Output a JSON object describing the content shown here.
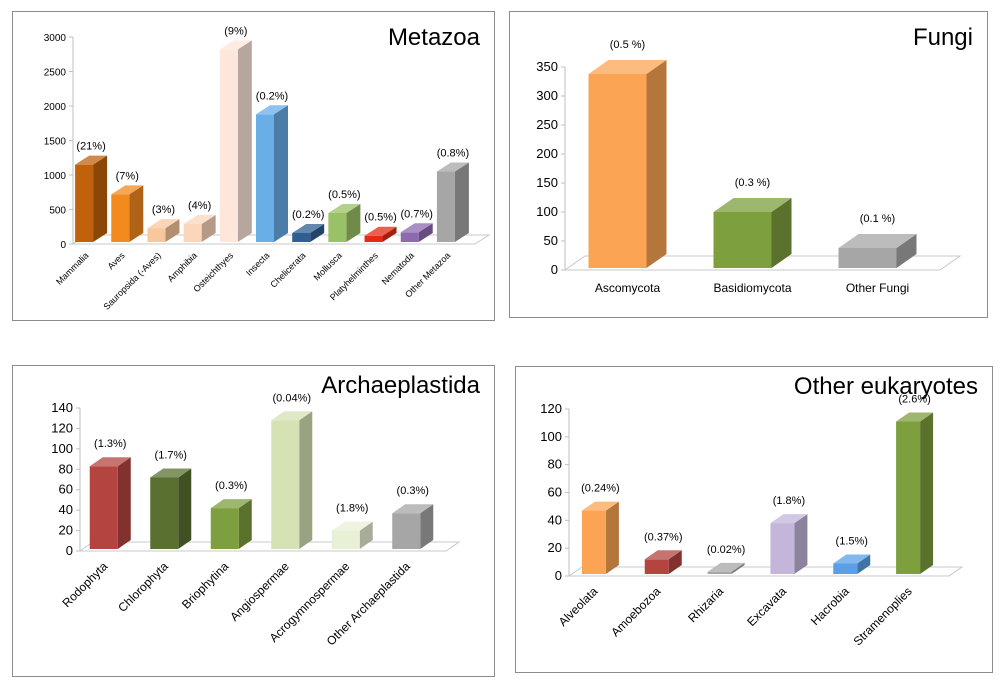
{
  "colors": {
    "dark_orange": "#c0620b",
    "orange": "#f28a1e",
    "peach": "#f9c79d",
    "light_peach": "#fbd6bb",
    "cream": "#fde6da",
    "light_blue": "#6aaee8",
    "navy": "#2f5f92",
    "light_green": "#9bc166",
    "red": "#e52a14",
    "purple": "#8d6ab0",
    "gray": "#a6a6a6",
    "fungi_orange": "#fba454",
    "olive": "#7e9f3e",
    "dark_red": "#b44440",
    "dark_green": "#5a7031",
    "pale_green": "#d4e2b4",
    "pale_green2": "#e8f0d6",
    "lavender": "#c4b5db",
    "blue": "#5ba0e6"
  },
  "chart_data": [
    {
      "type": "bar",
      "title": "Metazoa",
      "categories": [
        "Mammalia",
        "Aves",
        "Sauropsida (-Aves)",
        "Amphibia",
        "Osteichthyes",
        "Insecta",
        "Chelicerata",
        "Mollusca",
        "Platyhelminthes",
        "Nematoda",
        "Other Metazoa"
      ],
      "values": [
        1150,
        720,
        230,
        290,
        2820,
        1880,
        160,
        450,
        120,
        170,
        1050
      ],
      "data_labels": [
        "(21%)",
        "(7%)",
        "(3%)",
        "(4%)",
        "(9%)",
        "(0.2%)",
        "(0.2%)",
        "(0.5%)",
        "(0.5%)",
        "(0.7%)",
        "(0.8%)"
      ],
      "colors": [
        "#c0620b",
        "#f28a1e",
        "#f9c79d",
        "#fbd6bb",
        "#fde6da",
        "#6aaee8",
        "#2f5f92",
        "#9bc166",
        "#e52a14",
        "#8d6ab0",
        "#a6a6a6"
      ],
      "ylim": [
        0,
        3000
      ],
      "yticks": [
        "0",
        "500",
        "1000",
        "1500",
        "2000",
        "2500",
        "3000"
      ],
      "grid": false,
      "xlabel": "",
      "ylabel": ""
    },
    {
      "type": "bar",
      "title": "Fungi",
      "categories": [
        "Ascomycota",
        "Basidiomycota",
        "Other Fungi"
      ],
      "values": [
        338,
        100,
        38
      ],
      "data_labels": [
        "(0.5 %)",
        "(0.3 %)",
        "(0.1 %)"
      ],
      "colors": [
        "#fba454",
        "#7e9f3e",
        "#a6a6a6"
      ],
      "ylim": [
        0,
        350
      ],
      "yticks": [
        "0",
        "50",
        "100",
        "150",
        "200",
        "250",
        "300",
        "350"
      ],
      "grid": false,
      "xlabel": "",
      "ylabel": ""
    },
    {
      "type": "bar",
      "title": "Archaeplastida",
      "categories": [
        "Rodophyta",
        "Chlorophyta",
        "Briophytina",
        "Angiospermae",
        "Acrogymnospermae",
        "Other Archaeplastida"
      ],
      "values": [
        83,
        72,
        42,
        128,
        20,
        37
      ],
      "data_labels": [
        "(1.3%)",
        "(1.7%)",
        "(0.3%)",
        "(0.04%)",
        "(1.8%)",
        "(0.3%)"
      ],
      "colors": [
        "#b44440",
        "#5a7031",
        "#7e9f3e",
        "#d4e2b4",
        "#e8f0d6",
        "#a6a6a6"
      ],
      "ylim": [
        0,
        140
      ],
      "yticks": [
        "0",
        "20",
        "40",
        "60",
        "80",
        "100",
        "120",
        "140"
      ],
      "grid": false,
      "xlabel": "",
      "ylabel": ""
    },
    {
      "type": "bar",
      "title": "Other eukaryotes",
      "categories": [
        "Alveolata",
        "Amoebozoa",
        "Rhizaria",
        "Excavata",
        "Hacrobia",
        "Stramenoplies"
      ],
      "values": [
        47,
        12,
        3,
        38,
        9,
        111
      ],
      "data_labels": [
        "(0.24%)",
        "(0.37%)",
        "(0.02%)",
        "(1.8%)",
        "(1.5%)",
        "(2.6%)"
      ],
      "colors": [
        "#fba454",
        "#b44440",
        "#a6a6a6",
        "#c4b5db",
        "#5ba0e6",
        "#7e9f3e"
      ],
      "ylim": [
        0,
        120
      ],
      "yticks": [
        "0",
        "20",
        "40",
        "60",
        "80",
        "100",
        "120"
      ],
      "grid": false,
      "xlabel": "",
      "ylabel": ""
    }
  ]
}
